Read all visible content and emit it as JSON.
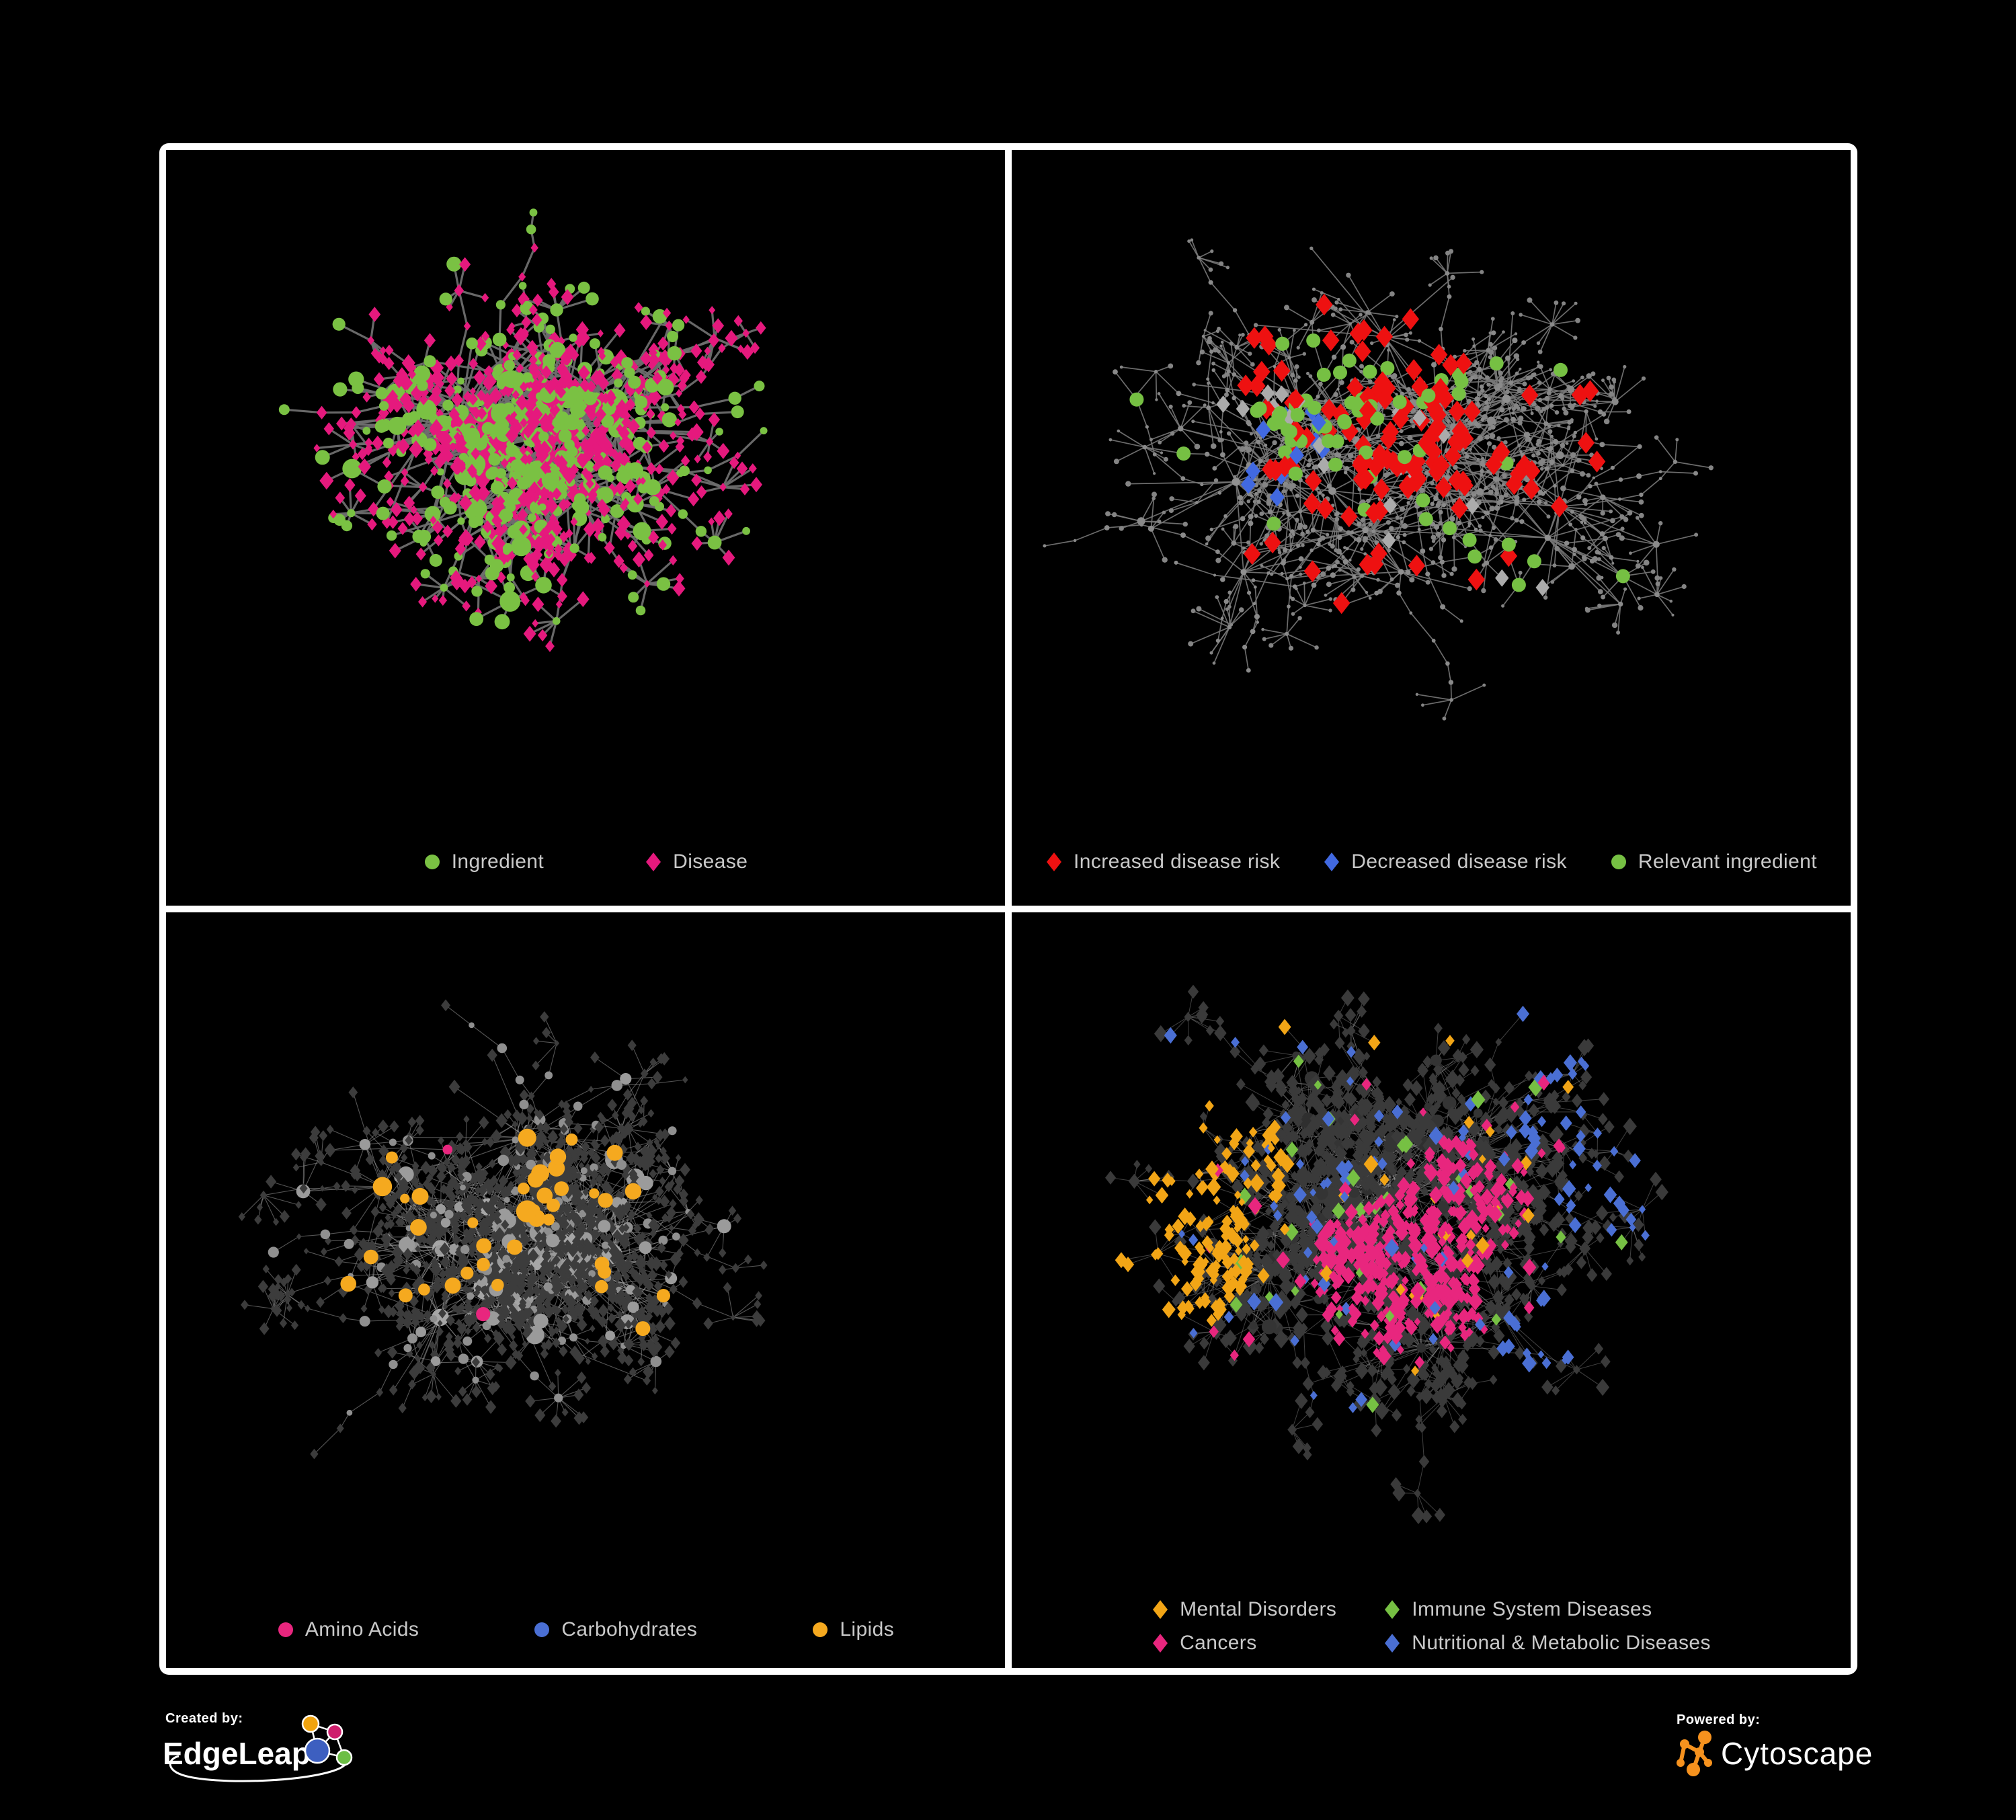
{
  "page": {
    "background": "#000000",
    "panel_border": "#FFFFFF",
    "legend_text_color": "#C9C9C9"
  },
  "footer": {
    "created_by_label": "Created by:",
    "created_by_name": "EdgeLeap",
    "powered_by_label": "Powered by:",
    "powered_by_name": "Cytoscape",
    "edgeleap_node_colors": [
      "#F0A30F",
      "#CE1E6C",
      "#3D5FC0",
      "#6CBE45"
    ],
    "cytoscape_orange": "#F6921E"
  },
  "chart_data": [
    {
      "type": "network",
      "name": "ingredient-disease-network",
      "legend": [
        {
          "label": "Ingredient",
          "shape": "circle",
          "color": "#7AC143"
        },
        {
          "label": "Disease",
          "shape": "diamond",
          "color": "#E5197D"
        }
      ],
      "edge": {
        "color": "#6E6E6E",
        "width": 3.2,
        "opacity": 0.95
      },
      "gen": {
        "seed": 11,
        "hubs": 20,
        "cx": 0.42,
        "cy": 0.4,
        "sx": 0.2,
        "sy": 0.17,
        "kidsMin": 9,
        "kidsMax": 22,
        "midProb": 0.2,
        "chainProb": 0.26,
        "burstMax": 7,
        "reach": 0.12,
        "extraEdges": 110,
        "linkDist": 0.12,
        "hubR": 15,
        "midR": 11,
        "leafR": 9.5,
        "dotR": 7.5
      },
      "paint": {
        "hub": [
          {
            "color": "#7AC143",
            "shape": "circle",
            "prob": 1
          }
        ],
        "mid": [
          {
            "color": "#7AC143",
            "shape": "circle",
            "prob": 1
          }
        ],
        "leaf": [
          {
            "color": "#E5197D",
            "shape": "diamond",
            "prob": 0.8
          },
          {
            "color": "#7AC143",
            "shape": "circle",
            "prob": 0.2
          }
        ],
        "dot": [
          {
            "color": "#E5197D",
            "shape": "diamond",
            "prob": 0.62
          },
          {
            "color": "#7AC143",
            "shape": "circle",
            "prob": 0.38
          }
        ],
        "regions": []
      }
    },
    {
      "type": "network",
      "name": "disease-risk-network",
      "legend": [
        {
          "label": "Increased disease risk",
          "shape": "diamond",
          "color": "#EE1111"
        },
        {
          "label": "Decreased disease risk",
          "shape": "diamond",
          "color": "#4169E1"
        },
        {
          "label": "Relevant ingredient",
          "shape": "circle",
          "color": "#76C043"
        }
      ],
      "edge": {
        "color": "#787878",
        "width": 1.7,
        "opacity": 0.9
      },
      "gen": {
        "seed": 23,
        "hubs": 23,
        "cx": 0.46,
        "cy": 0.42,
        "sx": 0.25,
        "sy": 0.21,
        "kidsMin": 6,
        "kidsMax": 17,
        "midProb": 0.16,
        "chainProb": 0.44,
        "burstMax": 7,
        "reach": 0.13,
        "extraEdges": 45,
        "linkDist": 0.11,
        "hubR": 5.5,
        "midR": 4.5,
        "leafR": 3.4,
        "dotR": 3
      },
      "paint": {
        "hub": [
          {
            "color": "#909090",
            "shape": "circle",
            "prob": 1
          }
        ],
        "mid": [
          {
            "color": "#8A8A8A",
            "shape": "circle",
            "prob": 1
          }
        ],
        "leaf": [
          {
            "color": "#848484",
            "shape": "circle",
            "prob": 1
          }
        ],
        "dot": [
          {
            "color": "#8A8A8A",
            "shape": "circle",
            "prob": 1
          }
        ],
        "regions": [
          {
            "color": "#EE1111",
            "shape": "diamond",
            "size": 15,
            "roles": [
              "mid",
              "hub",
              "leaf"
            ],
            "spots": [
              {
                "x": 0.4,
                "y": 0.33,
                "rr": 0.15,
                "prob": 0.2
              },
              {
                "x": 0.52,
                "y": 0.47,
                "rr": 0.13,
                "prob": 0.12
              },
              {
                "x": 0.66,
                "y": 0.4,
                "rr": 0.09,
                "prob": 0.1
              },
              {
                "x": 0.36,
                "y": 0.6,
                "rr": 0.1,
                "prob": 0.08
              },
              {
                "x": 0.72,
                "y": 0.78,
                "rr": 0.09,
                "prob": 0.3
              },
              {
                "x": 0.83,
                "y": 0.44,
                "rr": 0.06,
                "prob": 0.35
              }
            ]
          },
          {
            "color": "#4169E1",
            "shape": "diamond",
            "size": 13,
            "roles": [
              "mid",
              "hub",
              "leaf"
            ],
            "spots": [
              {
                "x": 0.875,
                "y": 0.205,
                "rr": 0.035,
                "prob": 0.9
              },
              {
                "x": 0.33,
                "y": 0.38,
                "rr": 0.05,
                "prob": 0.28
              },
              {
                "x": 0.29,
                "y": 0.43,
                "rr": 0.04,
                "prob": 0.25
              }
            ]
          },
          {
            "color": "#ABABAB",
            "shape": "diamond",
            "size": 12,
            "roles": [
              "mid",
              "leaf"
            ],
            "spots": [
              {
                "x": 0.46,
                "y": 0.44,
                "rr": 0.11,
                "prob": 0.06
              },
              {
                "x": 0.56,
                "y": 0.6,
                "rr": 0.08,
                "prob": 0.14
              },
              {
                "x": 0.3,
                "y": 0.33,
                "rr": 0.05,
                "prob": 0.2
              }
            ]
          },
          {
            "color": "#76C043",
            "shape": "circle",
            "size": 10.5,
            "roles": [
              "mid",
              "hub",
              "dot"
            ],
            "spots": [
              {
                "x": 0.4,
                "y": 0.34,
                "rr": 0.1,
                "prob": 0.25
              },
              {
                "x": 0.62,
                "y": 0.56,
                "rr": 0.05,
                "prob": 0.55
              },
              {
                "x": 0.25,
                "y": 0.3,
                "rr": 0.12,
                "prob": 0.1
              },
              {
                "x": 0.52,
                "y": 0.28,
                "rr": 0.08,
                "prob": 0.12
              },
              {
                "x": 0.47,
                "y": 0.47,
                "rr": 0.3,
                "prob": 0.03
              }
            ]
          }
        ]
      }
    },
    {
      "type": "network",
      "name": "nutrient-class-network",
      "legend": [
        {
          "label": "Amino Acids",
          "shape": "circle",
          "color": "#E8267E"
        },
        {
          "label": "Carbohydrates",
          "shape": "circle",
          "color": "#4A6FD4"
        },
        {
          "label": "Lipids",
          "shape": "circle",
          "color": "#F5A91F"
        }
      ],
      "edge": {
        "color": "#9A9A9A",
        "width": 1.1,
        "opacity": 0.55
      },
      "gen": {
        "seed": 37,
        "hubs": 19,
        "cx": 0.41,
        "cy": 0.44,
        "sx": 0.21,
        "sy": 0.18,
        "kidsMin": 11,
        "kidsMax": 28,
        "midProb": 0.24,
        "chainProb": 0.28,
        "burstMax": 8,
        "reach": 0.12,
        "extraEdges": 170,
        "linkDist": 0.1,
        "hubR": 14,
        "midR": 10,
        "leafR": 8,
        "dotR": 6
      },
      "paint": {
        "hub": [
          {
            "color": "#A6A6A6",
            "shape": "circle",
            "prob": 1
          }
        ],
        "mid": [
          {
            "color": "#9B9B9B",
            "shape": "circle",
            "prob": 1
          }
        ],
        "leaf": [
          {
            "color": "#3C3C3C",
            "shape": "diamond",
            "prob": 1
          }
        ],
        "dot": [
          {
            "color": "#3C3C3C",
            "shape": "diamond",
            "prob": 0.68
          },
          {
            "color": "#8F8F8F",
            "shape": "circle",
            "prob": 0.32
          }
        ],
        "regions": [
          {
            "color": "#F5A91F",
            "shape": "circle",
            "roles": [
              "mid",
              "hub"
            ],
            "spots": [
              {
                "x": 0.34,
                "y": 0.17,
                "rr": 0.12,
                "prob": 0.75
              },
              {
                "x": 0.44,
                "y": 0.32,
                "rr": 0.09,
                "prob": 0.8
              },
              {
                "x": 0.3,
                "y": 0.41,
                "rr": 0.1,
                "prob": 0.5
              },
              {
                "x": 0.56,
                "y": 0.5,
                "rr": 0.07,
                "prob": 0.65
              },
              {
                "x": 0.47,
                "y": 0.47,
                "rr": 0.28,
                "prob": 0.1
              },
              {
                "x": 0.5,
                "y": 0.5,
                "rr": 0.7,
                "prob": 0.05
              }
            ]
          },
          {
            "color": "#4A6FD4",
            "shape": "circle",
            "roles": [
              "mid",
              "hub"
            ],
            "spots": [
              {
                "x": 0.41,
                "y": 0.19,
                "rr": 0.08,
                "prob": 0.35
              },
              {
                "x": 0.34,
                "y": 0.3,
                "rr": 0.05,
                "prob": 0.3
              },
              {
                "x": 0.5,
                "y": 0.5,
                "rr": 0.7,
                "prob": 0.02
              }
            ]
          },
          {
            "color": "#E8267E",
            "shape": "circle",
            "roles": [
              "mid",
              "hub"
            ],
            "spots": [
              {
                "x": 0.5,
                "y": 0.5,
                "rr": 0.75,
                "prob": 0.05
              }
            ]
          }
        ]
      }
    },
    {
      "type": "network",
      "name": "disease-class-network",
      "legend": [
        {
          "label": "Mental Disorders",
          "shape": "diamond",
          "color": "#F2A516"
        },
        {
          "label": "Immune System Diseases",
          "shape": "diamond",
          "color": "#76C043"
        },
        {
          "label": "Cancers",
          "shape": "diamond",
          "color": "#E8267E"
        },
        {
          "label": "Nutritional & Metabolic Diseases",
          "shape": "diamond",
          "color": "#4A6FD4"
        }
      ],
      "edge": {
        "color": "#ACACAC",
        "width": 1,
        "opacity": 0.38
      },
      "gen": {
        "seed": 53,
        "hubs": 24,
        "cx": 0.46,
        "cy": 0.42,
        "sx": 0.24,
        "sy": 0.2,
        "kidsMin": 9,
        "kidsMax": 24,
        "midProb": 0.2,
        "chainProb": 0.32,
        "burstMax": 8,
        "reach": 0.12,
        "extraEdges": 230,
        "linkDist": 0.1,
        "hubR": 9,
        "midR": 8,
        "leafR": 10,
        "dotR": 8
      },
      "paint": {
        "hub": [
          {
            "color": "#2F2F2F",
            "shape": "circle",
            "prob": 1
          }
        ],
        "mid": [
          {
            "color": "#343434",
            "shape": "circle",
            "prob": 1
          }
        ],
        "leaf": [
          {
            "color": "#3A3A3A",
            "shape": "diamond",
            "prob": 1
          }
        ],
        "dot": [
          {
            "color": "#3A3A3A",
            "shape": "diamond",
            "prob": 1
          }
        ],
        "regions": [
          {
            "color": "#F2A516",
            "shape": "diamond",
            "roles": [
              "leaf",
              "dot",
              "mid"
            ],
            "spots": [
              {
                "x": 0.16,
                "y": 0.44,
                "rr": 0.13,
                "prob": 0.8
              },
              {
                "x": 0.25,
                "y": 0.33,
                "rr": 0.08,
                "prob": 0.4
              },
              {
                "x": 0.3,
                "y": 0.1,
                "rr": 0.07,
                "prob": 0.35
              },
              {
                "x": 0.5,
                "y": 0.5,
                "rr": 0.8,
                "prob": 0.02
              }
            ]
          },
          {
            "color": "#E8267E",
            "shape": "diamond",
            "roles": [
              "leaf",
              "dot",
              "mid"
            ],
            "spots": [
              {
                "x": 0.46,
                "y": 0.49,
                "rr": 0.11,
                "prob": 0.55
              },
              {
                "x": 0.54,
                "y": 0.38,
                "rr": 0.08,
                "prob": 0.35
              },
              {
                "x": 0.88,
                "y": 0.27,
                "rr": 0.05,
                "prob": 0.6
              },
              {
                "x": 0.5,
                "y": 0.5,
                "rr": 0.8,
                "prob": 0.02
              }
            ]
          },
          {
            "color": "#4A6FD4",
            "shape": "diamond",
            "roles": [
              "leaf",
              "dot",
              "mid"
            ],
            "spots": [
              {
                "x": 0.63,
                "y": 0.57,
                "rr": 0.06,
                "prob": 0.75
              },
              {
                "x": 0.76,
                "y": 0.28,
                "rr": 0.15,
                "prob": 0.3
              },
              {
                "x": 0.66,
                "y": 0.1,
                "rr": 0.13,
                "prob": 0.3
              },
              {
                "x": 0.86,
                "y": 0.5,
                "rr": 0.09,
                "prob": 0.3
              },
              {
                "x": 0.3,
                "y": 0.78,
                "rr": 0.08,
                "prob": 0.25
              },
              {
                "x": 0.13,
                "y": 0.12,
                "rr": 0.09,
                "prob": 0.3
              },
              {
                "x": 0.5,
                "y": 0.5,
                "rr": 0.8,
                "prob": 0.045
              }
            ]
          },
          {
            "color": "#76C043",
            "shape": "diamond",
            "roles": [
              "leaf",
              "mid"
            ],
            "spots": [
              {
                "x": 0.5,
                "y": 0.42,
                "rr": 0.25,
                "prob": 0.04
              },
              {
                "x": 0.5,
                "y": 0.5,
                "rr": 0.8,
                "prob": 0.01
              }
            ]
          }
        ]
      }
    }
  ]
}
